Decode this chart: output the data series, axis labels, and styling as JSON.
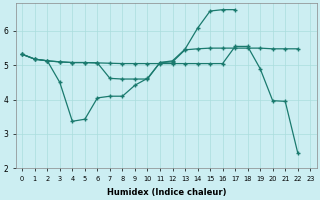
{
  "xlabel": "Humidex (Indice chaleur)",
  "bg_color": "#cceef2",
  "grid_color": "#aadddd",
  "line_color": "#1a7a6e",
  "xlim": [
    -0.5,
    23.5
  ],
  "ylim": [
    2,
    6.8
  ],
  "yticks": [
    2,
    3,
    4,
    5,
    6
  ],
  "xticks": [
    0,
    1,
    2,
    3,
    4,
    5,
    6,
    7,
    8,
    9,
    10,
    11,
    12,
    13,
    14,
    15,
    16,
    17,
    18,
    19,
    20,
    21,
    22,
    23
  ],
  "line1_x": [
    0,
    1,
    2,
    3,
    4,
    5,
    6,
    7,
    8,
    9,
    10,
    11,
    12,
    13,
    14,
    15,
    16,
    17,
    18,
    19,
    20,
    21,
    22
  ],
  "line1_y": [
    5.32,
    5.18,
    5.13,
    5.1,
    5.08,
    5.08,
    5.07,
    5.06,
    5.05,
    5.05,
    5.05,
    5.05,
    5.05,
    5.05,
    5.05,
    5.05,
    5.05,
    5.55,
    5.55,
    4.9,
    3.97,
    3.95,
    2.45
  ],
  "line2_x": [
    0,
    1,
    2,
    3,
    4,
    5,
    6,
    7,
    8,
    9,
    10,
    11,
    12,
    13,
    14,
    15,
    16,
    17
  ],
  "line2_y": [
    5.32,
    5.18,
    5.13,
    4.5,
    3.37,
    3.43,
    4.05,
    4.1,
    4.1,
    4.42,
    4.62,
    5.08,
    5.13,
    5.47,
    6.08,
    6.58,
    6.62,
    6.62
  ],
  "line3_x": [
    0,
    1,
    2,
    3,
    4,
    5,
    6,
    7,
    8,
    9,
    10,
    11,
    12,
    13,
    14,
    15,
    16,
    17,
    18,
    19,
    20,
    21,
    22
  ],
  "line3_y": [
    5.32,
    5.18,
    5.13,
    5.1,
    5.08,
    5.08,
    5.07,
    4.62,
    4.6,
    4.6,
    4.6,
    5.08,
    5.1,
    5.45,
    5.48,
    5.5,
    5.5,
    5.5,
    5.5,
    5.5,
    5.48,
    5.48,
    5.48
  ]
}
